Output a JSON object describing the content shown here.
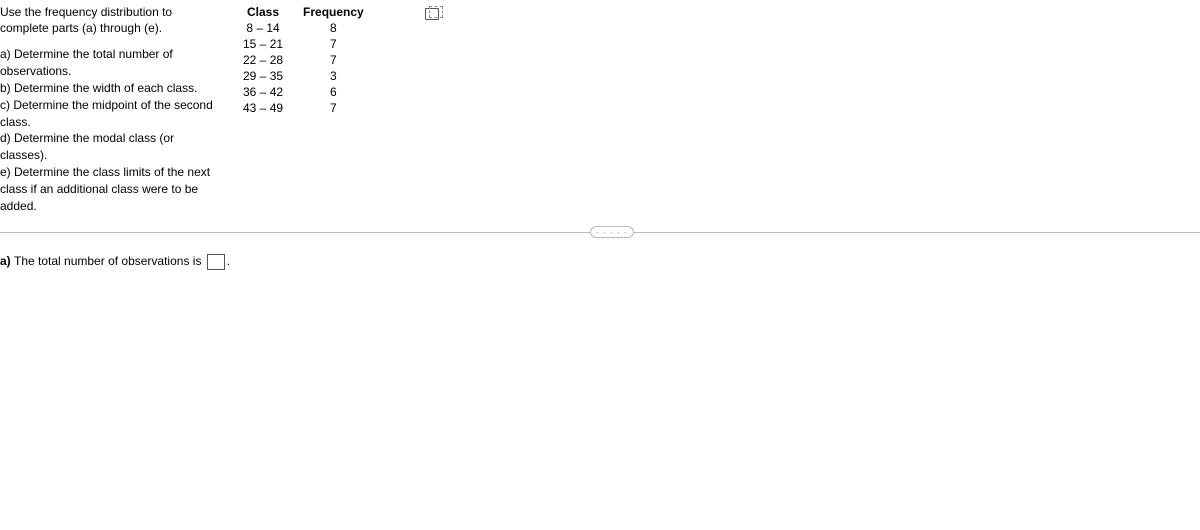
{
  "intro": "Use the frequency distribution to complete parts (a) through (e).",
  "parts": {
    "a": "a) Determine the total number of observations.",
    "b": "b) Determine the width of each class.",
    "c": "c) Determine the midpoint of the second class.",
    "d": "d) Determine the modal class (or classes).",
    "e": "e) Determine the class limits of the next class if an additional class were to be added."
  },
  "table": {
    "header_class": "Class",
    "header_freq": "Frequency",
    "rows": [
      {
        "class": "8 – 14",
        "freq": "8"
      },
      {
        "class": "15 – 21",
        "freq": "7"
      },
      {
        "class": "22 – 28",
        "freq": "7"
      },
      {
        "class": "29 – 35",
        "freq": "3"
      },
      {
        "class": "36 – 42",
        "freq": "6"
      },
      {
        "class": "43 – 49",
        "freq": "7"
      }
    ]
  },
  "divider_dots": "· · · · ·",
  "answer": {
    "label_prefix": "a) ",
    "label_text": "The total number of observations is ",
    "label_suffix": ".",
    "input_value": ""
  }
}
